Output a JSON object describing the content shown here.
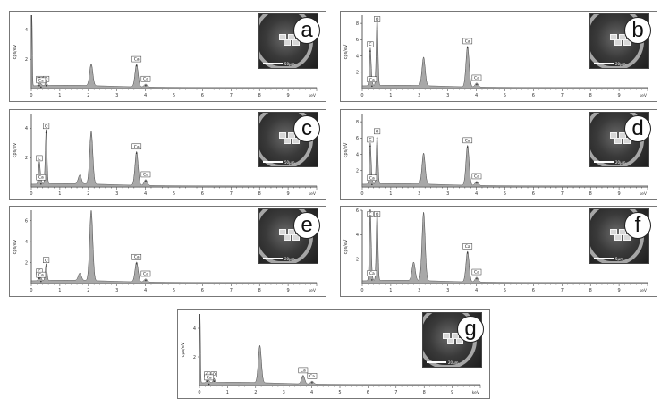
{
  "chart_data": [
    {
      "panel": "a",
      "type": "area",
      "ylabel": "cps/eV",
      "xunit": "keV",
      "xlim": [
        0,
        10
      ],
      "ylim": [
        0,
        5
      ],
      "xticks": [
        "0",
        "1",
        "2",
        "3",
        "4",
        "5",
        "6",
        "7",
        "8",
        "9"
      ],
      "yticks": [
        "2",
        "4"
      ],
      "peaks": [
        {
          "label": "C",
          "x": 0.28,
          "y": 0.2
        },
        {
          "label": "O",
          "x": 0.52,
          "y": 0.2
        },
        {
          "label": "Ca",
          "x": 0.34,
          "y": 0.1
        },
        {
          "label": "Ca",
          "x": 3.69,
          "y": 1.55
        },
        {
          "label": "Ca",
          "x": 4.01,
          "y": 0.2
        }
      ],
      "unlabeled_peaks": [
        {
          "x": 0.02,
          "y": 5.0
        },
        {
          "x": 2.1,
          "y": 1.5
        }
      ],
      "inset": {
        "scale_bar": "50µm"
      }
    },
    {
      "panel": "b",
      "type": "area",
      "ylabel": "cps/eV",
      "xunit": "keV",
      "xlim": [
        0,
        10
      ],
      "ylim": [
        0,
        9
      ],
      "xticks": [
        "0",
        "1",
        "2",
        "3",
        "4",
        "5",
        "6",
        "7",
        "8",
        "9"
      ],
      "yticks": [
        "2",
        "4",
        "6",
        "8"
      ],
      "peaks": [
        {
          "label": "C",
          "x": 0.28,
          "y": 4.6
        },
        {
          "label": "O",
          "x": 0.52,
          "y": 8.6
        },
        {
          "label": "Ca",
          "x": 0.34,
          "y": 0.3
        },
        {
          "label": "Ca",
          "x": 3.69,
          "y": 5.0
        },
        {
          "label": "Ca",
          "x": 4.01,
          "y": 0.5
        }
      ],
      "unlabeled_peaks": [
        {
          "x": 2.15,
          "y": 3.5
        }
      ],
      "inset": {
        "scale_bar": "20µm"
      }
    },
    {
      "panel": "c",
      "type": "area",
      "ylabel": "cps/eV",
      "xunit": "keV",
      "xlim": [
        0,
        10
      ],
      "ylim": [
        0,
        5
      ],
      "xticks": [
        "0",
        "1",
        "2",
        "3",
        "4",
        "5",
        "6",
        "7",
        "8",
        "9"
      ],
      "yticks": [
        "2",
        "4"
      ],
      "peaks": [
        {
          "label": "C",
          "x": 0.28,
          "y": 1.5
        },
        {
          "label": "O",
          "x": 0.52,
          "y": 3.7
        },
        {
          "label": "Ca",
          "x": 0.34,
          "y": 0.2
        },
        {
          "label": "Ca",
          "x": 3.69,
          "y": 2.3
        },
        {
          "label": "Ca",
          "x": 4.01,
          "y": 0.4
        }
      ],
      "unlabeled_peaks": [
        {
          "x": 2.1,
          "y": 3.6
        },
        {
          "x": 1.7,
          "y": 0.6
        }
      ],
      "inset": {
        "scale_bar": "50µm"
      }
    },
    {
      "panel": "d",
      "type": "area",
      "ylabel": "cps/eV",
      "xunit": "keV",
      "xlim": [
        0,
        10
      ],
      "ylim": [
        0,
        9
      ],
      "xticks": [
        "0",
        "1",
        "2",
        "3",
        "4",
        "5",
        "6",
        "7",
        "8",
        "9"
      ],
      "yticks": [
        "2",
        "4",
        "6",
        "8"
      ],
      "peaks": [
        {
          "label": "C",
          "x": 0.28,
          "y": 5.0
        },
        {
          "label": "O",
          "x": 0.52,
          "y": 6.0
        },
        {
          "label": "Ca",
          "x": 0.34,
          "y": 0.3
        },
        {
          "label": "Ca",
          "x": 3.69,
          "y": 4.9
        },
        {
          "label": "Ca",
          "x": 4.01,
          "y": 0.5
        }
      ],
      "unlabeled_peaks": [
        {
          "x": 2.15,
          "y": 3.8
        }
      ],
      "inset": {
        "scale_bar": "20µm"
      }
    },
    {
      "panel": "e",
      "type": "area",
      "ylabel": "cps/eV",
      "xunit": "keV",
      "xlim": [
        0,
        10
      ],
      "ylim": [
        0,
        7
      ],
      "xticks": [
        "0",
        "1",
        "2",
        "3",
        "4",
        "5",
        "6",
        "7",
        "8",
        "9"
      ],
      "yticks": [
        "2",
        "4",
        "6"
      ],
      "peaks": [
        {
          "label": "C",
          "x": 0.28,
          "y": 0.5
        },
        {
          "label": "O",
          "x": 0.52,
          "y": 1.6
        },
        {
          "label": "Ca",
          "x": 0.34,
          "y": 0.2
        },
        {
          "label": "Ca",
          "x": 3.69,
          "y": 1.9
        },
        {
          "label": "Ca",
          "x": 4.01,
          "y": 0.3
        }
      ],
      "unlabeled_peaks": [
        {
          "x": 2.1,
          "y": 6.7
        },
        {
          "x": 1.7,
          "y": 0.7
        }
      ],
      "inset": {
        "scale_bar": "20µm"
      }
    },
    {
      "panel": "f",
      "type": "area",
      "ylabel": "cps/eV",
      "xunit": "keV",
      "xlim": [
        0,
        10
      ],
      "ylim": [
        0,
        6
      ],
      "xticks": [
        "0",
        "1",
        "2",
        "3",
        "4",
        "5",
        "6",
        "7",
        "8",
        "9"
      ],
      "yticks": [
        "2",
        "4",
        "6"
      ],
      "peaks": [
        {
          "label": "C",
          "x": 0.28,
          "y": 6.0
        },
        {
          "label": "O",
          "x": 0.52,
          "y": 5.8
        },
        {
          "label": "Ca",
          "x": 0.34,
          "y": 0.3
        },
        {
          "label": "Ca",
          "x": 3.69,
          "y": 2.5
        },
        {
          "label": "Ca",
          "x": 4.01,
          "y": 0.4
        }
      ],
      "unlabeled_peaks": [
        {
          "x": 2.15,
          "y": 5.6
        },
        {
          "x": 1.8,
          "y": 1.5
        }
      ],
      "inset": {
        "scale_bar": "5µm"
      }
    },
    {
      "panel": "g",
      "type": "area",
      "ylabel": "cps/eV",
      "xunit": "keV",
      "xlim": [
        0,
        10
      ],
      "ylim": [
        0,
        5
      ],
      "xticks": [
        "0",
        "1",
        "2",
        "3",
        "4",
        "5",
        "6",
        "7",
        "8",
        "9"
      ],
      "yticks": [
        "2",
        "4"
      ],
      "peaks": [
        {
          "label": "C",
          "x": 0.28,
          "y": 0.3
        },
        {
          "label": "O",
          "x": 0.52,
          "y": 0.3
        },
        {
          "label": "Ca",
          "x": 0.34,
          "y": 0.1
        },
        {
          "label": "Ca",
          "x": 3.69,
          "y": 0.6
        },
        {
          "label": "Ca",
          "x": 4.01,
          "y": 0.2
        }
      ],
      "unlabeled_peaks": [
        {
          "x": 0.02,
          "y": 5.0
        },
        {
          "x": 2.15,
          "y": 2.6
        }
      ],
      "inset": {
        "scale_bar": "20µm"
      }
    }
  ]
}
